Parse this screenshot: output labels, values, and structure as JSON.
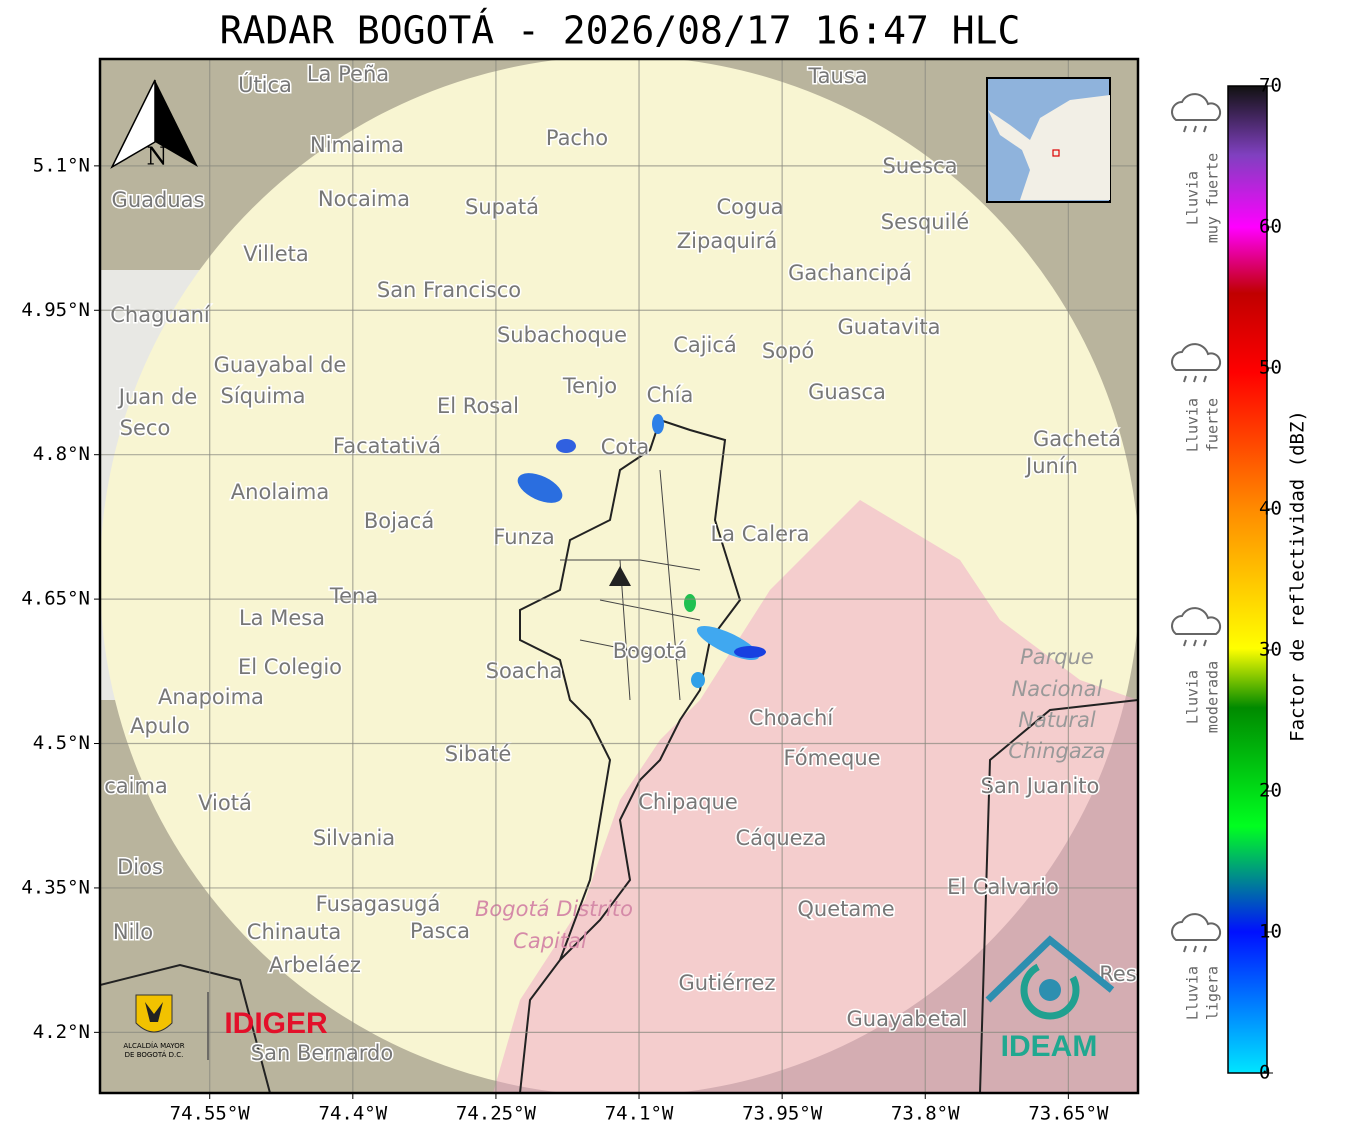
{
  "title": "RADAR BOGOTÁ - 2026/08/17 16:47 HLC",
  "map": {
    "xlim": [
      -74.665,
      -73.577
    ],
    "ylim": [
      4.137,
      5.211
    ],
    "grid": true,
    "xticks": [
      {
        "value": -74.55,
        "label": "74.55°W"
      },
      {
        "value": -74.4,
        "label": "74.4°W"
      },
      {
        "value": -74.25,
        "label": "74.25°W"
      },
      {
        "value": -74.1,
        "label": "74.1°W"
      },
      {
        "value": -73.95,
        "label": "73.95°W"
      },
      {
        "value": -73.8,
        "label": "73.8°W"
      },
      {
        "value": -73.65,
        "label": "73.65°W"
      }
    ],
    "yticks": [
      {
        "value": 5.1,
        "label": "5.1°N"
      },
      {
        "value": 4.95,
        "label": "4.95°N"
      },
      {
        "value": 4.8,
        "label": "4.8°N"
      },
      {
        "value": 4.65,
        "label": "4.65°N"
      },
      {
        "value": 4.5,
        "label": "4.5°N"
      },
      {
        "value": 4.35,
        "label": "4.35°N"
      },
      {
        "value": 4.2,
        "label": "4.2°N"
      }
    ],
    "north_label": "N",
    "places": [
      "La Peña",
      "Útica",
      "Tausa",
      "Pacho",
      "Nimaima",
      "Guaduas",
      "Nocaima",
      "Supatá",
      "Cogua",
      "Suesca",
      "Sesquilé",
      "Zipaquirá",
      "Villeta",
      "Gachancipá",
      "San Francisco",
      "Chaguaní",
      "Guatavita",
      "Subachoque",
      "Cajicá",
      "Sopó",
      "Guayabal de",
      "Síquima",
      "Tenjo",
      "Guasca",
      "Juan de",
      "El Rosal",
      "Chía",
      "Seco",
      "Facatativá",
      "Cota",
      "Gachetá",
      "Junín",
      "Anolaima",
      "Bojacá",
      "Funza",
      "La Calera",
      "Tena",
      "La Mesa",
      "El Colegio",
      "Soacha",
      "Bogotá",
      "Anapoima",
      "Apulo",
      "Choachí",
      "Sibaté",
      "Fómeque",
      "San Juanito",
      "caima",
      "Viotá",
      "Chipaque",
      "Silvania",
      "Cáqueza",
      "Dios",
      "El Calvario",
      "Fusagasugá",
      "Quetame",
      "Nilo",
      "Chinauta",
      "Pasca",
      "Arbeláez",
      "Gutiérrez",
      "Res",
      "Guayabetal",
      "San Bernardo"
    ],
    "park_label": [
      "Parque",
      "Nacional",
      "Natural",
      "Chingaza"
    ],
    "district_label": [
      "Bogotá Distrito",
      "Capital"
    ]
  },
  "colorbar": {
    "label": "Factor de reflectividad (dBZ)",
    "lim": [
      0,
      70
    ],
    "ticks": [
      0,
      10,
      20,
      30,
      40,
      50,
      60,
      70
    ]
  },
  "rain_levels": [
    [
      "Lluvia",
      "muy fuerte"
    ],
    [
      "Lluvia",
      "fuerte"
    ],
    [
      "Lluvia",
      "moderada"
    ],
    [
      "Lluvia",
      "ligera"
    ]
  ],
  "logos": {
    "alcaldia": [
      "ALCALDÍA MAYOR",
      "DE BOGOTÁ D.C."
    ],
    "idiger": "IDIGER",
    "ideam": "IDEAM"
  }
}
